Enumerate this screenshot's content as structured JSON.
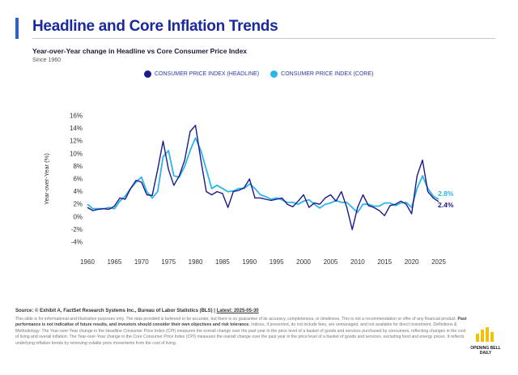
{
  "header": {
    "title": "Headline and Core Inflation Trends",
    "subtitle": "Year-over-Year change in Headline vs Core Consumer Price Index",
    "since": "Since 1960"
  },
  "legend": {
    "headline": "CONSUMER PRICE INDEX (HEADLINE)",
    "core": "CONSUMER PRICE INDEX (CORE)"
  },
  "colors": {
    "headline": "#1a1a8c",
    "core": "#2cb5e8",
    "title": "#1a2a9c"
  },
  "chart_data": {
    "type": "line",
    "title": "",
    "xlabel": "",
    "ylabel": "Year-over-Year (%)",
    "ylim": [
      -4,
      16
    ],
    "xlim": [
      1960,
      2025
    ],
    "yticks": [
      "16%",
      "14%",
      "12%",
      "10%",
      "8%",
      "6%",
      "4%",
      "2%",
      "0%",
      "-2%",
      "-4%"
    ],
    "xticks": [
      "1960",
      "1965",
      "1970",
      "1975",
      "1980",
      "1985",
      "1990",
      "1995",
      "2000",
      "2005",
      "2010",
      "2015",
      "2020",
      "2025"
    ],
    "grid": false,
    "legend_position": "top-center",
    "end_labels": {
      "core": "2.8%",
      "headline": "2.4%"
    },
    "series": [
      {
        "name": "CONSUMER PRICE INDEX (HEADLINE)",
        "x": [
          1960,
          1961,
          1962,
          1963,
          1964,
          1965,
          1966,
          1967,
          1968,
          1969,
          1970,
          1971,
          1972,
          1973,
          1974,
          1975,
          1976,
          1977,
          1978,
          1979,
          1980,
          1981,
          1982,
          1983,
          1984,
          1985,
          1986,
          1987,
          1988,
          1989,
          1990,
          1991,
          1992,
          1993,
          1994,
          1995,
          1996,
          1997,
          1998,
          1999,
          2000,
          2001,
          2002,
          2003,
          2004,
          2005,
          2006,
          2007,
          2008,
          2009,
          2010,
          2011,
          2012,
          2013,
          2014,
          2015,
          2016,
          2017,
          2018,
          2019,
          2020,
          2021,
          2022,
          2023,
          2024,
          2025
        ],
        "values": [
          1.5,
          1.0,
          1.2,
          1.3,
          1.2,
          1.7,
          3.0,
          2.8,
          4.5,
          5.8,
          5.5,
          3.5,
          3.4,
          7.5,
          12.0,
          7.5,
          5.0,
          6.5,
          9.0,
          13.5,
          14.5,
          9.0,
          4.0,
          3.5,
          4.0,
          3.7,
          1.5,
          4.0,
          4.2,
          4.6,
          6.0,
          3.0,
          3.0,
          2.8,
          2.6,
          2.8,
          3.0,
          2.0,
          1.6,
          2.5,
          3.5,
          1.5,
          2.2,
          2.0,
          3.0,
          3.5,
          2.5,
          4.0,
          1.5,
          -2.0,
          1.5,
          3.5,
          1.8,
          1.5,
          1.0,
          0.2,
          1.8,
          2.0,
          2.5,
          2.0,
          0.5,
          6.5,
          9.0,
          4.0,
          3.0,
          2.4
        ]
      },
      {
        "name": "CONSUMER PRICE INDEX (CORE)",
        "x": [
          1960,
          1961,
          1962,
          1963,
          1964,
          1965,
          1966,
          1967,
          1968,
          1969,
          1970,
          1971,
          1972,
          1973,
          1974,
          1975,
          1976,
          1977,
          1978,
          1979,
          1980,
          1981,
          1982,
          1983,
          1984,
          1985,
          1986,
          1987,
          1988,
          1989,
          1990,
          1991,
          1992,
          1993,
          1994,
          1995,
          1996,
          1997,
          1998,
          1999,
          2000,
          2001,
          2002,
          2003,
          2004,
          2005,
          2006,
          2007,
          2008,
          2009,
          2010,
          2011,
          2012,
          2013,
          2014,
          2015,
          2016,
          2017,
          2018,
          2019,
          2020,
          2021,
          2022,
          2023,
          2024,
          2025
        ],
        "values": [
          2.0,
          1.3,
          1.3,
          1.3,
          1.5,
          1.3,
          2.5,
          3.3,
          4.5,
          5.5,
          6.3,
          4.0,
          3.0,
          4.0,
          9.5,
          10.5,
          6.5,
          6.3,
          8.0,
          10.5,
          12.5,
          10.5,
          7.5,
          4.5,
          5.0,
          4.5,
          4.0,
          4.1,
          4.5,
          4.5,
          5.2,
          4.5,
          3.5,
          3.2,
          2.8,
          3.0,
          2.7,
          2.3,
          2.3,
          2.0,
          2.5,
          2.7,
          2.0,
          1.4,
          2.0,
          2.2,
          2.6,
          2.3,
          2.3,
          1.5,
          0.7,
          2.0,
          2.0,
          1.7,
          1.7,
          2.2,
          2.2,
          1.8,
          2.2,
          2.3,
          1.5,
          4.5,
          6.5,
          4.5,
          3.3,
          2.8
        ]
      }
    ]
  },
  "footer": {
    "source_prefix": "Source: © Exhibit A, FactSet Research Systems Inc., Bureau of Labor Statistics (BLS) | ",
    "source_latest": "Latest: 2025-05-30",
    "disclaimer_1": "This slide is for informational and illustrative purposes only. The data provided is believed to be accurate, but there is no guarantee of its accuracy, completeness, or timeliness. This is not a recommendation or offer of any financial product. ",
    "disclaimer_bold": "Past performance is not indicative of future results, and investors should consider their own objectives and risk tolerance.",
    "disclaimer_2": " Indices, if presented, do not include fees, are unmanaged, and not available for direct investment. Definitions & Methodology: The Year-over-Year change in the Headline Consumer Price Index (CPI) measures the overall change over the past year in the price level of a basket of goods and services purchased by consumers, reflecting changes in the cost of living and overall inflation. The Year-over-Year change in the Core Consumer Price Index (CPI) measures the overall change over the past year in the price level of a basket of goods and services, excluding food and energy prices. It reflects underlying inflation trends by removing volatile price movements from the cost of living."
  },
  "logo": {
    "line1": "OPENING BELL",
    "line2": "DAILY"
  }
}
